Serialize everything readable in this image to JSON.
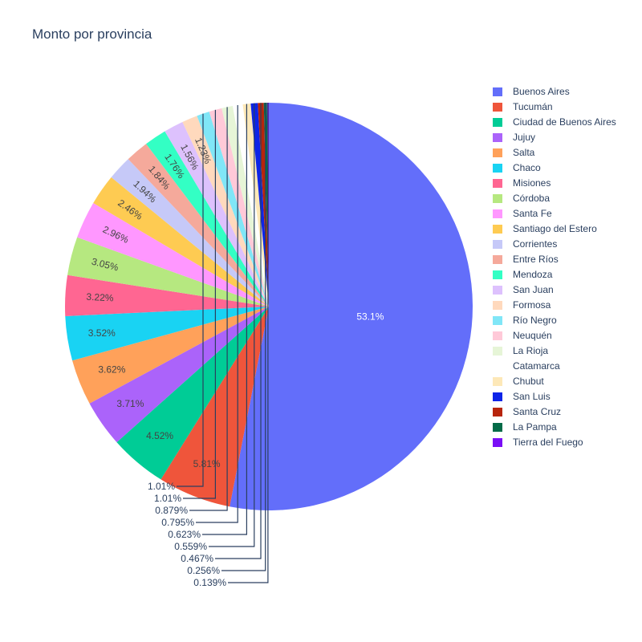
{
  "chart_data": {
    "type": "pie",
    "title": "Monto por provincia",
    "legend_position": "right",
    "slices": [
      {
        "label": "Buenos Aires",
        "value": 53.1,
        "text": "53.1%",
        "color": "#636efa"
      },
      {
        "label": "Tucumán",
        "value": 5.81,
        "text": "5.81%",
        "color": "#EF553B"
      },
      {
        "label": "Ciudad de Buenos Aires",
        "value": 4.52,
        "text": "4.52%",
        "color": "#00cc96"
      },
      {
        "label": "Jujuy",
        "value": 3.71,
        "text": "3.71%",
        "color": "#ab63fa"
      },
      {
        "label": "Salta",
        "value": 3.62,
        "text": "3.62%",
        "color": "#FFA15A"
      },
      {
        "label": "Chaco",
        "value": 3.52,
        "text": "3.52%",
        "color": "#19d3f3"
      },
      {
        "label": "Misiones",
        "value": 3.22,
        "text": "3.22%",
        "color": "#FF6692"
      },
      {
        "label": "Córdoba",
        "value": 3.05,
        "text": "3.05%",
        "color": "#B6E880"
      },
      {
        "label": "Santa Fe",
        "value": 2.96,
        "text": "2.96%",
        "color": "#FF97FF"
      },
      {
        "label": "Santiago del Estero",
        "value": 2.46,
        "text": "2.46%",
        "color": "#FECB52"
      },
      {
        "label": "Corrientes",
        "value": 1.94,
        "text": "1.94%",
        "color": "#c6c9f8"
      },
      {
        "label": "Entre Ríos",
        "value": 1.84,
        "text": "1.84%",
        "color": "#f5a99b"
      },
      {
        "label": "Mendoza",
        "value": 1.76,
        "text": "1.76%",
        "color": "#33ffc4"
      },
      {
        "label": "San Juan",
        "value": 1.56,
        "text": "1.56%",
        "color": "#ddc1fd"
      },
      {
        "label": "Formosa",
        "value": 1.23,
        "text": "1.23%",
        "color": "#ffd9bd"
      },
      {
        "label": "Río Negro",
        "value": 1.01,
        "text": "1.01%",
        "color": "#80e6f7"
      },
      {
        "label": "Neuquén",
        "value": 1.01,
        "text": "1.01%",
        "color": "#ffc9d8"
      },
      {
        "label": "La Rioja",
        "value": 0.879,
        "text": "0.879%",
        "color": "#e6f5d7"
      },
      {
        "label": "Catamarca",
        "value": 0.795,
        "text": "0.795%",
        "color": "#ffffff"
      },
      {
        "label": "Chubut",
        "value": 0.623,
        "text": "0.623%",
        "color": "#fde8b8"
      },
      {
        "label": "San Luis",
        "value": 0.559,
        "text": "0.559%",
        "color": "#0d24e8"
      },
      {
        "label": "Santa Cruz",
        "value": 0.467,
        "text": "0.467%",
        "color": "#b7250c"
      },
      {
        "label": "La Pampa",
        "value": 0.256,
        "text": "0.256%",
        "color": "#046b48"
      },
      {
        "label": "Tierra del Fuego",
        "value": 0.139,
        "text": "0.139%",
        "color": "#7a0ef6"
      }
    ]
  }
}
